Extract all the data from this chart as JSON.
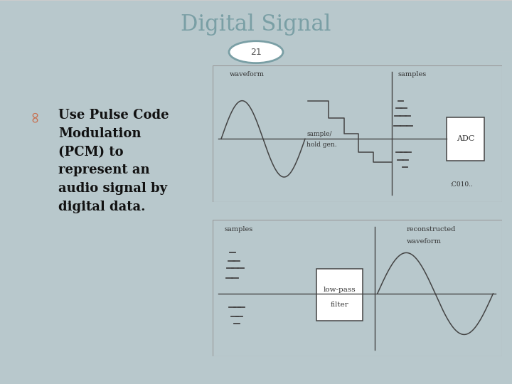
{
  "title": "Digital Signal",
  "slide_number": "21",
  "bg_color": "#b8c8cc",
  "header_bg": "#ffffff",
  "bottom_bar_color": "#8a9fa5",
  "title_color": "#7a9fa5",
  "title_fontsize": 22,
  "bullet_color": "#c87050",
  "bullet_text_lines": [
    "Use Pulse Code",
    "Modulation",
    "(PCM) to",
    "represent an",
    "audio signal by",
    "digital data."
  ],
  "bullet_fontsize": 13,
  "diagram_bg": "#ffffff",
  "line_color": "#444444",
  "label_color": "#333333",
  "label_fontsize": 7
}
